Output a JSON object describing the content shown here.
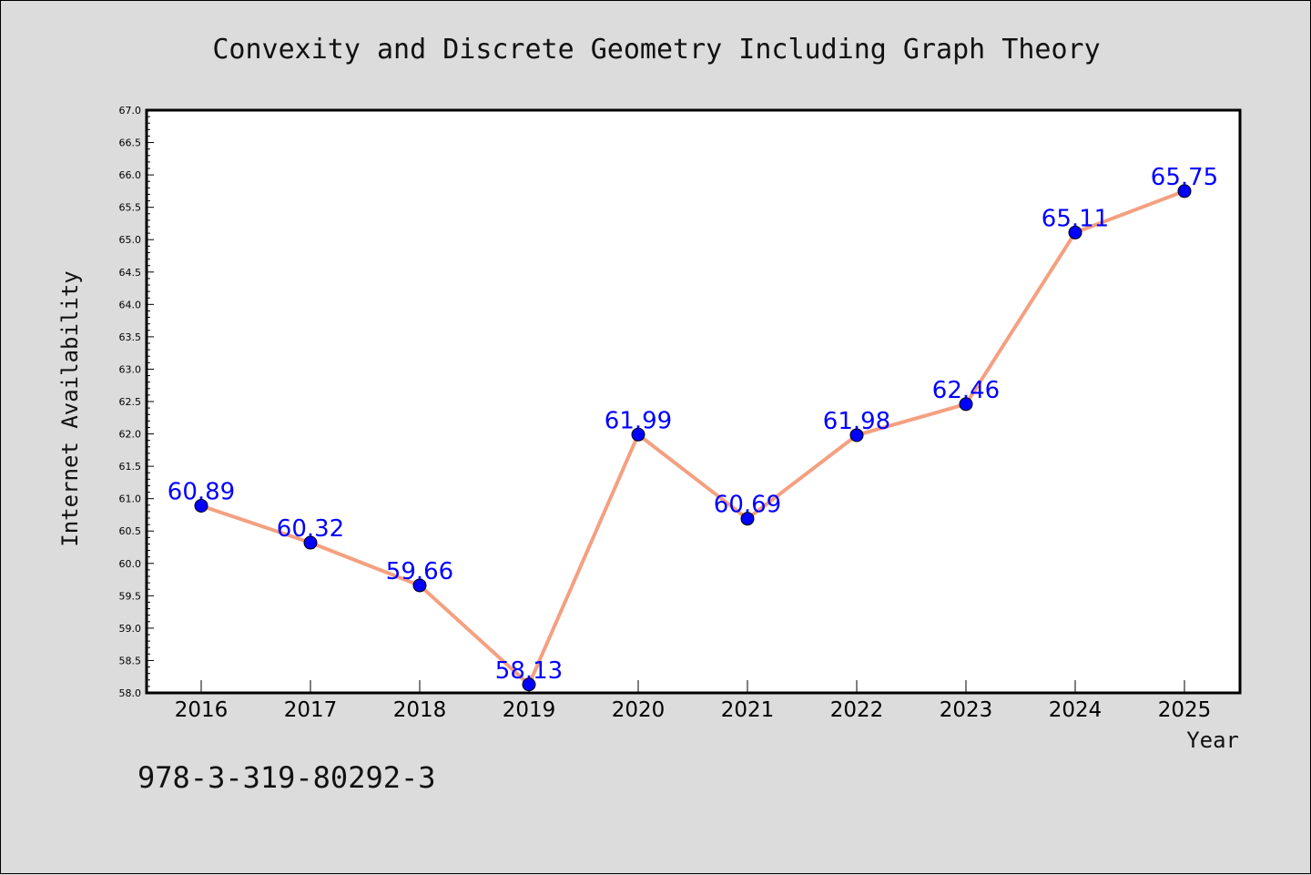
{
  "footer": {
    "isbn": "978-3-319-80292-3"
  },
  "colors": {
    "background": "#dcdcdc",
    "plot_background": "#ffffff",
    "line": "#f4a080",
    "marker": "#0000ff",
    "data_label": "#0000ff"
  },
  "chart_data": {
    "type": "line",
    "title": "Convexity and Discrete Geometry Including Graph Theory",
    "xlabel": "Year",
    "ylabel": "Internet Availability",
    "categories": [
      "2016",
      "2017",
      "2018",
      "2019",
      "2020",
      "2021",
      "2022",
      "2023",
      "2024",
      "2025"
    ],
    "series": [
      {
        "values": [
          60.89,
          60.32,
          59.66,
          58.13,
          61.99,
          60.69,
          61.98,
          62.46,
          65.11,
          65.75
        ]
      }
    ],
    "data_labels": [
      "60.89",
      "60.32",
      "59.66",
      "58.13",
      "61.99",
      "60.69",
      "61.98",
      "62.46",
      "65.11",
      "65.75"
    ],
    "ylim": [
      58.0,
      67.0
    ],
    "yticks": [
      "58.0",
      "58.5",
      "59.0",
      "59.5",
      "60.0",
      "60.5",
      "61.0",
      "61.5",
      "62.0",
      "62.5",
      "63.0",
      "63.5",
      "64.0",
      "64.5",
      "65.0",
      "65.5",
      "66.0",
      "66.5",
      "67.0"
    ],
    "grid": false,
    "legend": "none"
  }
}
